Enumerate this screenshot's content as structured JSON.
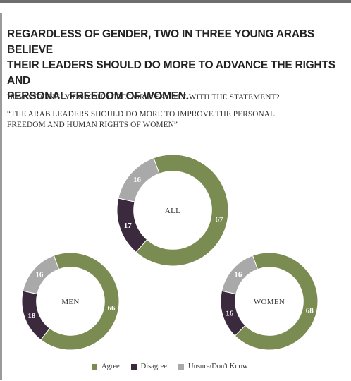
{
  "headline": [
    "REGARDLESS OF GENDER, TWO IN THREE YOUNG ARABS BELIEVE",
    "THEIR LEADERS SHOULD DO MORE TO ADVANCE THE RIGHTS AND",
    "PERSONAL FREEDOM OF WOMEN."
  ],
  "question": "HOW STRONGLY DO YOU AGREE OR DISAGREE WITH THE STATEMENT?",
  "statement": [
    "“THE ARAB LEADERS SHOULD DO MORE TO IMPROVE THE PERSONAL",
    "FREEDOM AND HUMAN RIGHTS OF WOMEN”"
  ],
  "colors": {
    "agree": "#7a8c52",
    "disagree": "#3b2a3e",
    "unsure": "#a9a9a9"
  },
  "chart_data": {
    "type": "pie",
    "categories": [
      "Agree",
      "Disagree",
      "Unsure/Don't Know"
    ],
    "legend": [
      "Agree",
      "Disagree",
      "Unsure/Don't Know"
    ],
    "series": [
      {
        "name": "ALL",
        "values": [
          67,
          17,
          16
        ]
      },
      {
        "name": "MEN",
        "values": [
          66,
          18,
          16
        ]
      },
      {
        "name": "WOMEN",
        "values": [
          68,
          16,
          16
        ]
      }
    ]
  }
}
